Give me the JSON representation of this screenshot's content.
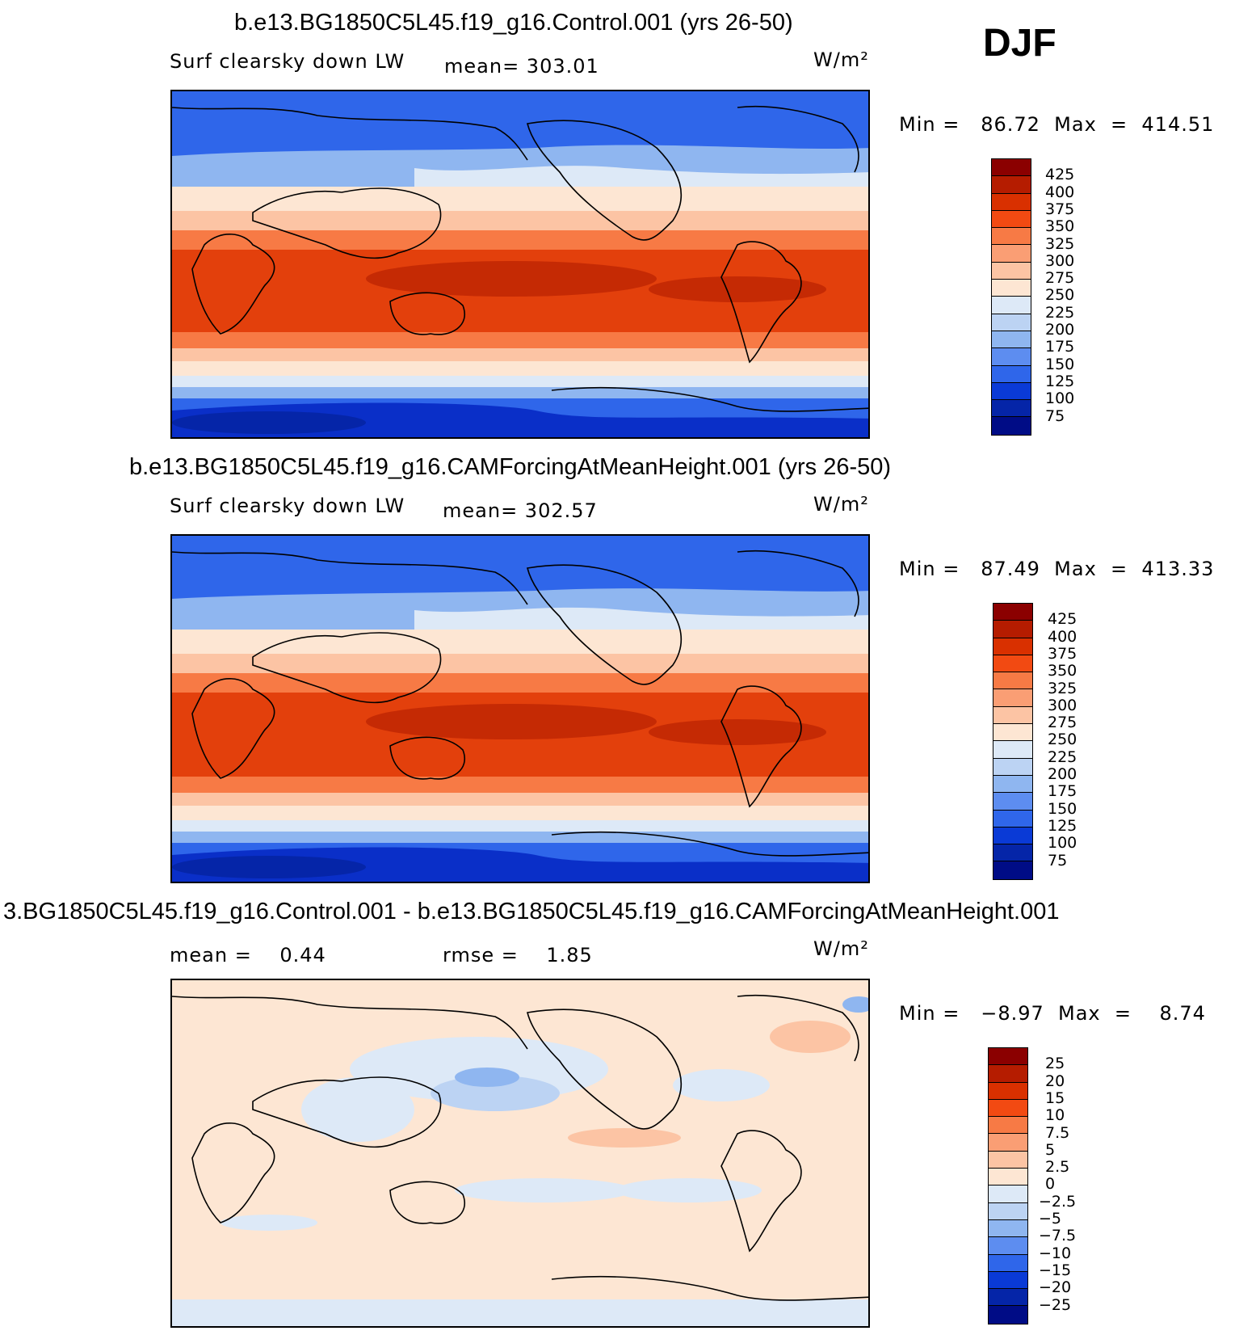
{
  "season": "DJF",
  "panels": [
    {
      "title": "b.e13.BG1850C5L45.f19_g16.Control.001 (yrs 26-50)",
      "variable": "Surf clearsky down LW",
      "stat": "mean= 303.01",
      "units": "W/m²",
      "minmax": "Min =   86.72  Max  =  414.51"
    },
    {
      "title": "b.e13.BG1850C5L45.f19_g16.CAMForcingAtMeanHeight.001 (yrs 26-50)",
      "variable": "Surf clearsky down LW",
      "stat": "mean= 302.57",
      "units": "W/m²",
      "minmax": "Min =   87.49  Max  =  413.33"
    },
    {
      "title": "3.BG1850C5L45.f19_g16.Control.001 - b.e13.BG1850C5L45.f19_g16.CAMForcingAtMeanHeight.001",
      "stat_mean": "mean =    0.44",
      "stat_rmse": "rmse =    1.85",
      "units": "W/m²",
      "minmax": "Min =   −8.97  Max  =    8.74"
    }
  ],
  "colorbar_field": {
    "labels": [
      "425",
      "400",
      "375",
      "350",
      "325",
      "300",
      "275",
      "250",
      "225",
      "200",
      "175",
      "150",
      "125",
      "100",
      "75"
    ],
    "colors": [
      "#8b0000",
      "#b51c00",
      "#d93000",
      "#f24a12",
      "#f77a45",
      "#fa9e74",
      "#fcc4a4",
      "#fde6d3",
      "#dde9f7",
      "#bcd3f3",
      "#8fb6f0",
      "#5d8df0",
      "#2f66ea",
      "#0a3ad6",
      "#0525a8",
      "#000c86"
    ]
  },
  "colorbar_diff": {
    "labels": [
      "25",
      "20",
      "15",
      "10",
      "7.5",
      "5",
      "2.5",
      "0",
      "−2.5",
      "−5",
      "−7.5",
      "−10",
      "−15",
      "−20",
      "−25"
    ],
    "colors": [
      "#8b0000",
      "#b51c00",
      "#d93000",
      "#f24a12",
      "#f77a45",
      "#fa9e74",
      "#fcc4a4",
      "#fde6d3",
      "#dde9f7",
      "#bcd3f3",
      "#8fb6f0",
      "#5d8df0",
      "#2f66ea",
      "#0a3ad6",
      "#0525a8",
      "#000c86"
    ]
  },
  "map_palette": {
    "deep_blue": "#0a2fc8",
    "blue": "#2f66ea",
    "light_blue": "#8fb6f0",
    "pale_blue": "#dde9f7",
    "cream": "#fde6d3",
    "peach": "#fcc4a4",
    "orange": "#f77a45",
    "red": "#e3400c",
    "dark_red": "#c52a04"
  }
}
